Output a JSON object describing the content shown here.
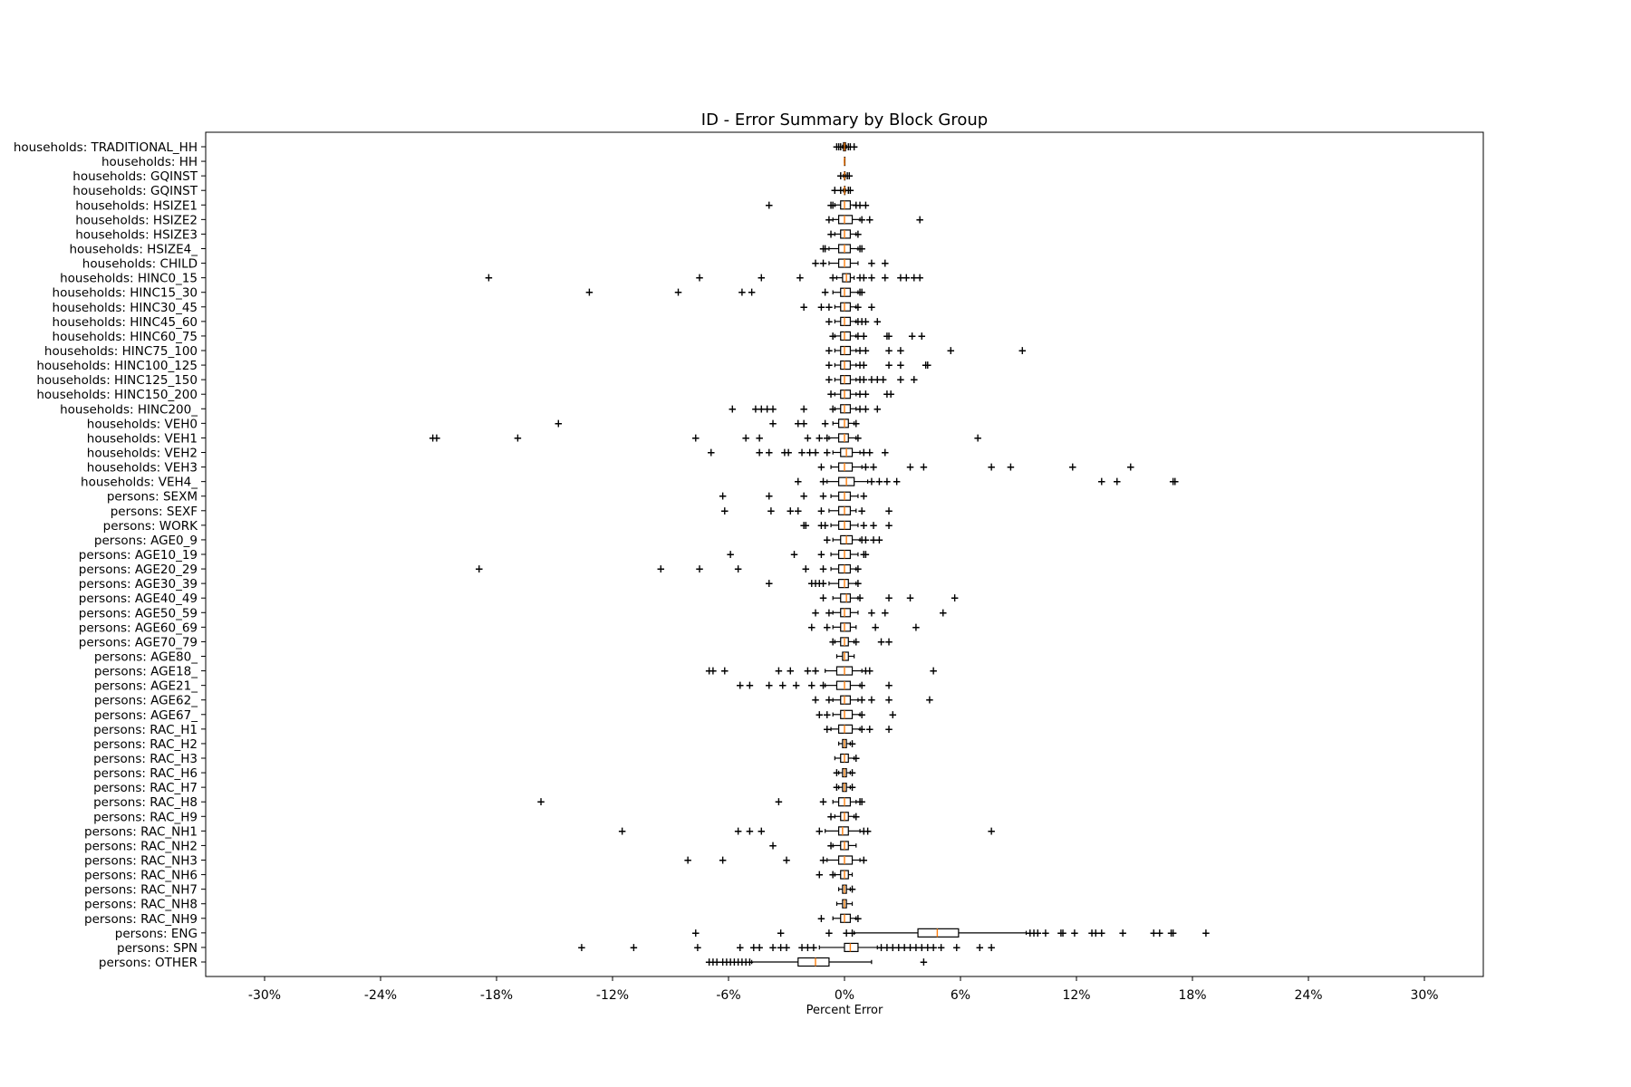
{
  "chart_data": {
    "type": "boxplot",
    "orientation": "horizontal",
    "title": "ID - Error Summary by Block Group",
    "xlabel": "Percent Error",
    "ylabel": "",
    "xlim": [
      -30,
      30
    ],
    "x_ticks": [
      -30,
      -24,
      -18,
      -12,
      -6,
      0,
      6,
      12,
      18,
      24,
      30
    ],
    "x_tick_labels": [
      "-30%",
      "-24%",
      "-18%",
      "-12%",
      "-6%",
      "0%",
      "6%",
      "12%",
      "18%",
      "24%",
      "30%"
    ],
    "grid": false,
    "colors": {
      "box": "#000000",
      "median": "#ff7f0e",
      "frame": "#000000"
    },
    "boxes": [
      {
        "label": "households: TRADITIONAL_HH",
        "whislo": -0.1,
        "q1": -0.05,
        "med": 0.0,
        "q3": 0.05,
        "whishi": 0.1,
        "fliers": [
          -0.4,
          -0.3,
          -0.2,
          0.2,
          0.3,
          0.5
        ]
      },
      {
        "label": "households: HH",
        "whislo": 0,
        "q1": 0,
        "med": 0,
        "q3": 0,
        "whishi": 0,
        "fliers": []
      },
      {
        "label": "households: GQINST",
        "whislo": -0.05,
        "q1": 0,
        "med": 0,
        "q3": 0,
        "whishi": 0.05,
        "fliers": [
          -0.2,
          0.15,
          0.25
        ]
      },
      {
        "label": "households: GQINST",
        "whislo": -0.05,
        "q1": 0,
        "med": 0,
        "q3": 0,
        "whishi": 0.05,
        "fliers": [
          -0.5,
          -0.2,
          0.2,
          0.3
        ]
      },
      {
        "label": "households: HSIZE1",
        "whislo": -0.5,
        "q1": -0.2,
        "med": 0.0,
        "q3": 0.3,
        "whishi": 0.6,
        "fliers": [
          -3.9,
          -0.7,
          -0.6,
          0.6,
          0.8,
          1.1
        ]
      },
      {
        "label": "households: HSIZE2",
        "whislo": -0.6,
        "q1": -0.3,
        "med": 0.0,
        "q3": 0.4,
        "whishi": 0.8,
        "fliers": [
          -0.8,
          0.9,
          1.3,
          3.9
        ]
      },
      {
        "label": "households: HSIZE3",
        "whislo": -0.5,
        "q1": -0.2,
        "med": 0.0,
        "q3": 0.3,
        "whishi": 0.6,
        "fliers": [
          -0.7,
          0.7
        ]
      },
      {
        "label": "households: HSIZE4_",
        "whislo": -0.8,
        "q1": -0.3,
        "med": 0.0,
        "q3": 0.3,
        "whishi": 0.7,
        "fliers": [
          -1.1,
          -1.0,
          0.8,
          0.9
        ]
      },
      {
        "label": "households: CHILD",
        "whislo": -0.8,
        "q1": -0.3,
        "med": 0.0,
        "q3": 0.3,
        "whishi": 0.7,
        "fliers": [
          -1.5,
          -1.1,
          1.4,
          2.1
        ]
      },
      {
        "label": "households: HINC0_15",
        "whislo": -0.4,
        "q1": -0.1,
        "med": 0.1,
        "q3": 0.3,
        "whishi": 0.5,
        "fliers": [
          -18.4,
          -7.5,
          -4.3,
          -2.3,
          -0.6,
          0.8,
          1.0,
          1.4,
          2.1,
          2.9,
          3.2,
          3.6,
          3.9
        ]
      },
      {
        "label": "households: HINC15_30",
        "whislo": -0.6,
        "q1": -0.2,
        "med": 0.0,
        "q3": 0.3,
        "whishi": 0.7,
        "fliers": [
          -13.2,
          -8.6,
          -5.3,
          -4.8,
          -1.0,
          0.8,
          0.9
        ]
      },
      {
        "label": "households: HINC30_45",
        "whislo": -0.5,
        "q1": -0.2,
        "med": 0.0,
        "q3": 0.3,
        "whishi": 0.6,
        "fliers": [
          -2.1,
          -1.2,
          -0.8,
          0.7,
          1.4
        ]
      },
      {
        "label": "households: HINC45_60",
        "whislo": -0.5,
        "q1": -0.2,
        "med": 0.0,
        "q3": 0.3,
        "whishi": 0.6,
        "fliers": [
          -0.8,
          0.7,
          0.9,
          1.1,
          1.7
        ]
      },
      {
        "label": "households: HINC60_75",
        "whislo": -0.5,
        "q1": -0.2,
        "med": 0.0,
        "q3": 0.3,
        "whishi": 0.6,
        "fliers": [
          -0.6,
          0.7,
          1.0,
          2.2,
          2.3,
          3.5,
          4.0
        ]
      },
      {
        "label": "households: HINC75_100",
        "whislo": -0.5,
        "q1": -0.2,
        "med": 0.0,
        "q3": 0.3,
        "whishi": 0.6,
        "fliers": [
          -0.8,
          0.8,
          1.1,
          2.3,
          2.9,
          5.5,
          9.2
        ]
      },
      {
        "label": "households: HINC100_125",
        "whislo": -0.5,
        "q1": -0.2,
        "med": 0.0,
        "q3": 0.3,
        "whishi": 0.6,
        "fliers": [
          -0.8,
          0.8,
          1.0,
          2.3,
          2.9,
          4.2,
          4.3
        ]
      },
      {
        "label": "households: HINC125_150",
        "whislo": -0.5,
        "q1": -0.2,
        "med": 0.0,
        "q3": 0.3,
        "whishi": 0.6,
        "fliers": [
          -0.8,
          0.8,
          1.0,
          1.4,
          1.7,
          2.0,
          2.9,
          3.6
        ]
      },
      {
        "label": "households: HINC150_200",
        "whislo": -0.5,
        "q1": -0.2,
        "med": 0.0,
        "q3": 0.3,
        "whishi": 0.6,
        "fliers": [
          -0.7,
          0.8,
          1.1,
          2.2,
          2.4
        ]
      },
      {
        "label": "households: HINC200_",
        "whislo": -0.5,
        "q1": -0.2,
        "med": 0.0,
        "q3": 0.3,
        "whishi": 0.6,
        "fliers": [
          -5.8,
          -4.6,
          -4.3,
          -4.0,
          -3.7,
          -2.1,
          -0.6,
          0.8,
          1.1,
          1.7
        ]
      },
      {
        "label": "households: VEH0",
        "whislo": -0.6,
        "q1": -0.3,
        "med": 0.0,
        "q3": 0.2,
        "whishi": 0.5,
        "fliers": [
          -14.8,
          -3.7,
          -2.4,
          -2.1,
          -1.0,
          0.6
        ]
      },
      {
        "label": "households: VEH1",
        "whislo": -0.8,
        "q1": -0.3,
        "med": 0.0,
        "q3": 0.2,
        "whishi": 0.6,
        "fliers": [
          -21.3,
          -21.1,
          -16.9,
          -7.7,
          -5.1,
          -4.4,
          -1.9,
          -1.3,
          -0.9,
          0.7,
          6.9
        ]
      },
      {
        "label": "households: VEH2",
        "whislo": -0.6,
        "q1": -0.2,
        "med": 0.1,
        "q3": 0.4,
        "whishi": 0.8,
        "fliers": [
          -6.9,
          -4.4,
          -3.9,
          -3.1,
          -2.9,
          -2.2,
          -1.8,
          -1.5,
          -0.9,
          1.0,
          1.3,
          2.1
        ]
      },
      {
        "label": "households: VEH3",
        "whislo": -0.7,
        "q1": -0.3,
        "med": 0.0,
        "q3": 0.4,
        "whishi": 0.9,
        "fliers": [
          -1.2,
          1.1,
          1.5,
          3.4,
          4.1,
          7.6,
          8.6,
          11.8,
          14.8
        ]
      },
      {
        "label": "households: VEH4_",
        "whislo": -0.9,
        "q1": -0.3,
        "med": 0.1,
        "q3": 0.5,
        "whishi": 1.2,
        "fliers": [
          -2.4,
          -1.1,
          1.4,
          1.8,
          2.2,
          2.7,
          13.3,
          14.1,
          17.0,
          17.1
        ]
      },
      {
        "label": "persons: SEXM",
        "whislo": -0.7,
        "q1": -0.3,
        "med": 0.0,
        "q3": 0.3,
        "whishi": 0.7,
        "fliers": [
          -6.3,
          -3.9,
          -2.1,
          -1.1,
          1.0
        ]
      },
      {
        "label": "persons: SEXF",
        "whislo": -0.8,
        "q1": -0.3,
        "med": 0.0,
        "q3": 0.3,
        "whishi": 0.6,
        "fliers": [
          -6.2,
          -3.8,
          -2.8,
          -2.4,
          -1.2,
          0.9,
          2.3
        ]
      },
      {
        "label": "persons: WORK",
        "whislo": -0.7,
        "q1": -0.3,
        "med": 0.0,
        "q3": 0.3,
        "whishi": 0.7,
        "fliers": [
          -2.1,
          -2.0,
          -1.2,
          -1.0,
          1.0,
          1.5,
          2.3
        ]
      },
      {
        "label": "persons: AGE0_9",
        "whislo": -0.6,
        "q1": -0.2,
        "med": 0.1,
        "q3": 0.4,
        "whishi": 0.8,
        "fliers": [
          -0.9,
          0.9,
          1.1,
          1.5,
          1.8
        ]
      },
      {
        "label": "persons: AGE10_19",
        "whislo": -0.7,
        "q1": -0.3,
        "med": 0.0,
        "q3": 0.3,
        "whishi": 0.7,
        "fliers": [
          -5.9,
          -2.6,
          -1.2,
          1.0,
          1.1
        ]
      },
      {
        "label": "persons: AGE20_29",
        "whislo": -0.7,
        "q1": -0.3,
        "med": 0.0,
        "q3": 0.3,
        "whishi": 0.6,
        "fliers": [
          -18.9,
          -9.5,
          -7.5,
          -5.5,
          -2.0,
          -1.1,
          0.7
        ]
      },
      {
        "label": "persons: AGE30_39",
        "whislo": -0.8,
        "q1": -0.3,
        "med": 0.0,
        "q3": 0.2,
        "whishi": 0.6,
        "fliers": [
          -3.9,
          -1.7,
          -1.5,
          -1.3,
          -1.1,
          0.7
        ]
      },
      {
        "label": "persons: AGE40_49",
        "whislo": -0.6,
        "q1": -0.2,
        "med": 0.1,
        "q3": 0.3,
        "whishi": 0.7,
        "fliers": [
          -1.1,
          0.8,
          2.3,
          3.4,
          5.7
        ]
      },
      {
        "label": "persons: AGE50_59",
        "whislo": -0.6,
        "q1": -0.2,
        "med": 0.0,
        "q3": 0.3,
        "whishi": 0.7,
        "fliers": [
          -1.5,
          -0.8,
          1.4,
          2.1,
          5.1
        ]
      },
      {
        "label": "persons: AGE60_69",
        "whislo": -0.6,
        "q1": -0.2,
        "med": 0.0,
        "q3": 0.3,
        "whishi": 0.6,
        "fliers": [
          -1.7,
          -0.9,
          1.6,
          3.7
        ]
      },
      {
        "label": "persons: AGE70_79",
        "whislo": -0.5,
        "q1": -0.2,
        "med": 0.0,
        "q3": 0.2,
        "whishi": 0.5,
        "fliers": [
          -0.6,
          0.6,
          1.9,
          2.3
        ]
      },
      {
        "label": "persons: AGE80_",
        "whislo": -0.4,
        "q1": -0.1,
        "med": 0.0,
        "q3": 0.2,
        "whishi": 0.5,
        "fliers": []
      },
      {
        "label": "persons: AGE18_",
        "whislo": -1.0,
        "q1": -0.4,
        "med": 0.0,
        "q3": 0.4,
        "whishi": 0.9,
        "fliers": [
          -7.0,
          -6.8,
          -6.2,
          -3.4,
          -2.8,
          -1.9,
          -1.5,
          1.1,
          1.3,
          4.6
        ]
      },
      {
        "label": "persons: AGE21_",
        "whislo": -1.0,
        "q1": -0.4,
        "med": 0.0,
        "q3": 0.3,
        "whishi": 0.8,
        "fliers": [
          -5.4,
          -4.9,
          -3.9,
          -3.2,
          -2.5,
          -1.7,
          -1.1,
          0.9,
          2.3
        ]
      },
      {
        "label": "persons: AGE62_",
        "whislo": -0.6,
        "q1": -0.2,
        "med": 0.0,
        "q3": 0.3,
        "whishi": 0.7,
        "fliers": [
          -1.5,
          -0.8,
          0.9,
          1.4,
          2.3,
          4.4
        ]
      },
      {
        "label": "persons: AGE67_",
        "whislo": -0.6,
        "q1": -0.2,
        "med": 0.0,
        "q3": 0.4,
        "whishi": 0.8,
        "fliers": [
          -1.3,
          -0.9,
          0.9,
          2.5
        ]
      },
      {
        "label": "persons: RAC_H1",
        "whislo": -0.7,
        "q1": -0.3,
        "med": 0.0,
        "q3": 0.4,
        "whishi": 0.8,
        "fliers": [
          -0.9,
          0.9,
          1.3,
          2.3
        ]
      },
      {
        "label": "persons: RAC_H2",
        "whislo": -0.3,
        "q1": -0.1,
        "med": 0.0,
        "q3": 0.1,
        "whishi": 0.3,
        "fliers": [
          0.4
        ]
      },
      {
        "label": "persons: RAC_H3",
        "whislo": -0.5,
        "q1": -0.2,
        "med": 0.0,
        "q3": 0.2,
        "whishi": 0.5,
        "fliers": [
          0.6
        ]
      },
      {
        "label": "persons: RAC_H6",
        "whislo": -0.3,
        "q1": -0.1,
        "med": 0.0,
        "q3": 0.1,
        "whishi": 0.3,
        "fliers": [
          -0.4,
          0.4
        ]
      },
      {
        "label": "persons: RAC_H7",
        "whislo": -0.3,
        "q1": -0.1,
        "med": 0.0,
        "q3": 0.1,
        "whishi": 0.3,
        "fliers": [
          -0.4,
          0.4
        ]
      },
      {
        "label": "persons: RAC_H8",
        "whislo": -0.6,
        "q1": -0.3,
        "med": 0.0,
        "q3": 0.3,
        "whishi": 0.6,
        "fliers": [
          -15.7,
          -3.4,
          -1.1,
          0.8,
          0.9
        ]
      },
      {
        "label": "persons: RAC_H9",
        "whislo": -0.5,
        "q1": -0.2,
        "med": 0.0,
        "q3": 0.2,
        "whishi": 0.5,
        "fliers": [
          -0.7,
          0.6
        ]
      },
      {
        "label": "persons: RAC_NH1",
        "whislo": -1.0,
        "q1": -0.3,
        "med": -0.1,
        "q3": 0.2,
        "whishi": 0.8,
        "fliers": [
          -11.5,
          -5.5,
          -4.9,
          -4.3,
          -1.3,
          1.0,
          1.2,
          7.6
        ]
      },
      {
        "label": "persons: RAC_NH2",
        "whislo": -0.6,
        "q1": -0.2,
        "med": 0.0,
        "q3": 0.2,
        "whishi": 0.6,
        "fliers": [
          -3.7,
          -0.7
        ]
      },
      {
        "label": "persons: RAC_NH3",
        "whislo": -0.9,
        "q1": -0.3,
        "med": 0.0,
        "q3": 0.4,
        "whishi": 0.8,
        "fliers": [
          -8.1,
          -6.3,
          -3.0,
          -1.1,
          1.0
        ]
      },
      {
        "label": "persons: RAC_NH6",
        "whislo": -0.5,
        "q1": -0.2,
        "med": 0.0,
        "q3": 0.2,
        "whishi": 0.4,
        "fliers": [
          -1.3,
          -0.6
        ]
      },
      {
        "label": "persons: RAC_NH7",
        "whislo": -0.3,
        "q1": -0.1,
        "med": 0.0,
        "q3": 0.1,
        "whishi": 0.3,
        "fliers": [
          0.4
        ]
      },
      {
        "label": "persons: RAC_NH8",
        "whislo": -0.4,
        "q1": -0.1,
        "med": 0.0,
        "q3": 0.1,
        "whishi": 0.4,
        "fliers": []
      },
      {
        "label": "persons: RAC_NH9",
        "whislo": -0.6,
        "q1": -0.2,
        "med": 0.0,
        "q3": 0.3,
        "whishi": 0.6,
        "fliers": [
          -1.2,
          0.7
        ]
      },
      {
        "label": "persons: ENG",
        "whislo": 0.5,
        "q1": 3.8,
        "med": 4.8,
        "q3": 5.9,
        "whishi": 9.4,
        "fliers": [
          -7.7,
          -3.3,
          -0.8,
          0.1,
          0.4,
          9.6,
          9.8,
          10.0,
          10.4,
          11.2,
          11.3,
          11.9,
          12.8,
          13.0,
          13.3,
          14.4,
          16.0,
          16.3,
          16.9,
          17.0,
          18.7
        ]
      },
      {
        "label": "persons: SPN",
        "whislo": -1.3,
        "q1": 0.0,
        "med": 0.3,
        "q3": 0.7,
        "whishi": 1.7,
        "fliers": [
          -13.6,
          -10.9,
          -7.6,
          -5.4,
          -4.7,
          -4.4,
          -3.7,
          -3.3,
          -3.0,
          -2.2,
          -1.9,
          -1.6,
          1.9,
          2.2,
          2.5,
          2.8,
          3.1,
          3.4,
          3.7,
          4.0,
          4.3,
          4.6,
          5.0,
          5.8,
          7.0,
          7.6
        ]
      },
      {
        "label": "persons: OTHER",
        "whislo": -4.8,
        "q1": -2.4,
        "med": -1.5,
        "q3": -0.8,
        "whishi": 1.4,
        "fliers": [
          -7.0,
          -6.8,
          -6.6,
          -6.3,
          -6.1,
          -5.9,
          -5.7,
          -5.5,
          -5.3,
          -5.1,
          -4.9,
          4.1
        ]
      }
    ]
  }
}
